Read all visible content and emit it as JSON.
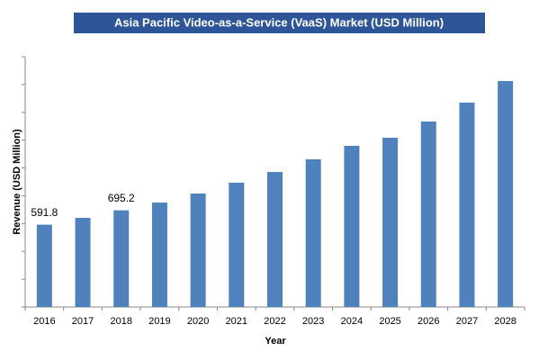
{
  "chart_data": {
    "type": "bar",
    "title": "Asia Pacific Video-as-a-Service (VaaS) Market (USD Million)",
    "x_label": "Year",
    "y_label": "Revenue (USD Million)",
    "categories": [
      "2016",
      "2017",
      "2018",
      "2019",
      "2020",
      "2021",
      "2022",
      "2023",
      "2024",
      "2025",
      "2026",
      "2027",
      "2028"
    ],
    "values": [
      591.8,
      641,
      695.2,
      751,
      816,
      894,
      971,
      1062,
      1159,
      1217,
      1334,
      1470,
      1625
    ],
    "value_labels": [
      "591.8",
      null,
      "695.2",
      null,
      null,
      null,
      null,
      null,
      null,
      null,
      null,
      null,
      null
    ],
    "color": "#4f81bd",
    "title_background": "#2e5597",
    "ylim": [
      0,
      1800
    ],
    "yticks": [
      0,
      200,
      400,
      600,
      800,
      1000,
      1200,
      1400,
      1600,
      1800
    ],
    "grid": false
  }
}
